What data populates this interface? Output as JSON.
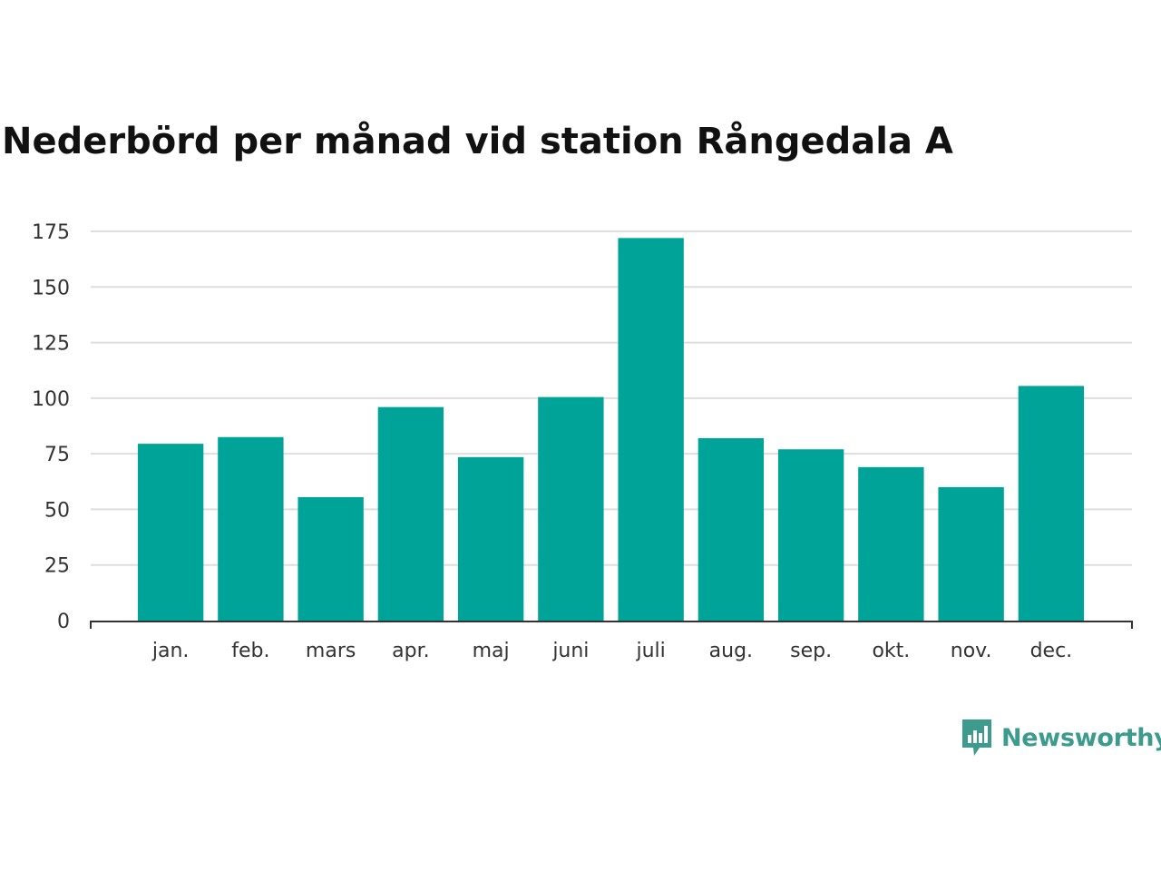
{
  "title": "Nederbörd per månad vid station Rångedala A",
  "brand": {
    "name": "Newsworthy",
    "icon": "newsworthy-logo-icon",
    "color": "#3c9b8c"
  },
  "colors": {
    "bar": "#00a398",
    "grid": "#dedede",
    "axis": "#333333"
  },
  "chart_data": {
    "type": "bar",
    "title": "Nederbörd per månad vid station Rångedala A",
    "xlabel": "",
    "ylabel": "",
    "categories": [
      "jan.",
      "feb.",
      "mars",
      "apr.",
      "maj",
      "juni",
      "juli",
      "aug.",
      "sep.",
      "okt.",
      "nov.",
      "dec."
    ],
    "values": [
      79.5,
      82.5,
      55.5,
      96,
      73.5,
      100.5,
      172,
      82,
      77,
      69,
      60,
      105.5
    ],
    "ylim": [
      0,
      175
    ],
    "yticks": [
      0,
      25,
      50,
      75,
      100,
      125,
      150,
      175
    ],
    "grid": true,
    "legend": "none"
  }
}
